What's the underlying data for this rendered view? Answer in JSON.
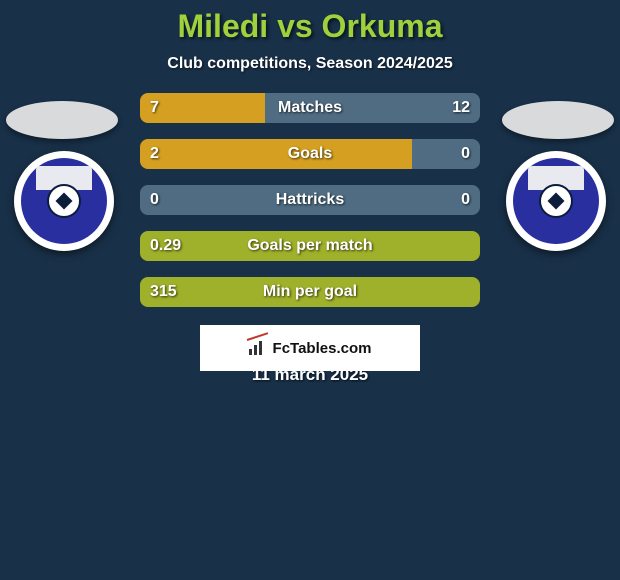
{
  "title": {
    "text": "Miledi vs Orkuma",
    "color": "#9fd13c",
    "fontsize": 32
  },
  "subtitle": "Club competitions, Season 2024/2025",
  "date": "11 march 2025",
  "attribution": "FcTables.com",
  "colors": {
    "background": "#183048",
    "leftBar": "#d5a021",
    "rightBar": "#4f6c82",
    "fullBar": "#9fb02a",
    "text": "#ffffff"
  },
  "badge": {
    "inner_color": "#2a2fa0"
  },
  "bars": [
    {
      "label": "Matches",
      "left": "7",
      "right": "12",
      "leftPct": 36.8,
      "rightPct": 63.2,
      "mode": "split"
    },
    {
      "label": "Goals",
      "left": "2",
      "right": "0",
      "leftPct": 80.0,
      "rightPct": 20.0,
      "mode": "split"
    },
    {
      "label": "Hattricks",
      "left": "0",
      "right": "0",
      "leftPct": 50.0,
      "rightPct": 50.0,
      "mode": "both-right"
    },
    {
      "label": "Goals per match",
      "left": "0.29",
      "right": "",
      "leftPct": 100,
      "rightPct": 0,
      "mode": "full"
    },
    {
      "label": "Min per goal",
      "left": "315",
      "right": "",
      "leftPct": 100,
      "rightPct": 0,
      "mode": "full"
    }
  ]
}
